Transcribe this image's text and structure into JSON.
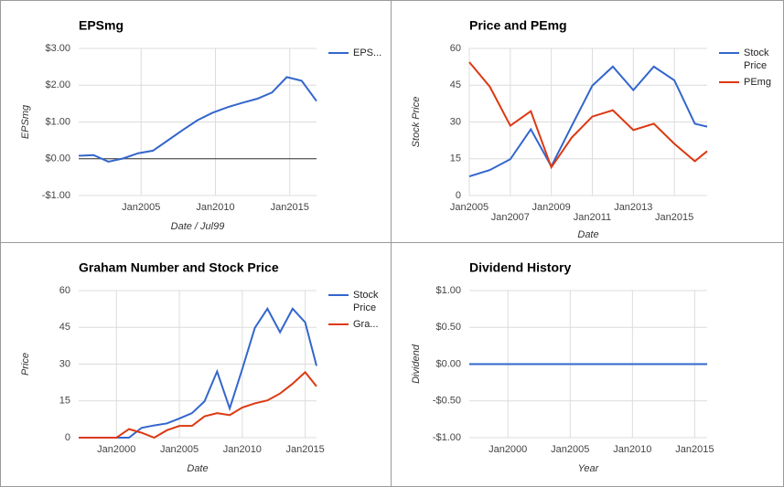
{
  "chart_data": [
    {
      "type": "line",
      "title": "EPSmg",
      "xlabel": "Date / Jul99",
      "ylabel": "EPSmg",
      "x": [
        2000.8,
        2001.8,
        2002.8,
        2003.8,
        2004.8,
        2005.8,
        2006.8,
        2007.8,
        2008.8,
        2009.8,
        2010.8,
        2011.8,
        2012.8,
        2013.8,
        2014.8,
        2015.8,
        2016.8
      ],
      "series": [
        {
          "name": "EPS...",
          "color": "#3366cc",
          "values": [
            0.08,
            0.1,
            -0.08,
            0.01,
            0.15,
            0.22,
            0.5,
            0.78,
            1.05,
            1.25,
            1.4,
            1.52,
            1.63,
            1.8,
            2.22,
            2.12,
            1.57
          ]
        }
      ],
      "xlim": [
        2000.8,
        2016.8
      ],
      "xticks": [
        {
          "value": 2005,
          "label": "Jan2005"
        },
        {
          "value": 2010,
          "label": "Jan2010"
        },
        {
          "value": 2015,
          "label": "Jan2015"
        }
      ],
      "ylim": [
        -1,
        3
      ],
      "yticks": [
        {
          "value": 3,
          "label": "$3.00"
        },
        {
          "value": 2,
          "label": "$2.00"
        },
        {
          "value": 1,
          "label": "$1.00"
        },
        {
          "value": 0,
          "label": "$0.00"
        },
        {
          "value": -1,
          "label": "-$1.00"
        }
      ],
      "grid": true,
      "legend": "right"
    },
    {
      "type": "line",
      "title": "Price and PEmg",
      "xlabel": "Date",
      "ylabel": "Stock Price",
      "x": [
        2005,
        2006,
        2007,
        2008,
        2009,
        2010,
        2011,
        2012,
        2013,
        2014,
        2015,
        2016,
        2016.6
      ],
      "series": [
        {
          "name": "Stock Price",
          "color": "#3366cc",
          "values": [
            7.8,
            10.4,
            14.8,
            27,
            11.9,
            28.5,
            44.8,
            52.6,
            43,
            52.6,
            47,
            29.3,
            28.1
          ]
        },
        {
          "name": "PEmg",
          "color": "#dc3912",
          "values": [
            54.4,
            44.4,
            28.5,
            34.4,
            11.5,
            23.7,
            32.2,
            34.8,
            26.7,
            29.3,
            21.1,
            14,
            18.1
          ]
        }
      ],
      "xlim": [
        2005,
        2016.6
      ],
      "xticks": [
        {
          "value": 2005,
          "label": "Jan2005"
        },
        {
          "value": 2007,
          "label": "Jan2007"
        },
        {
          "value": 2009,
          "label": "Jan2009"
        },
        {
          "value": 2011,
          "label": "Jan2011"
        },
        {
          "value": 2013,
          "label": "Jan2013"
        },
        {
          "value": 2015,
          "label": "Jan2015"
        }
      ],
      "ylim": [
        0,
        60
      ],
      "yticks": [
        60,
        45,
        30,
        15,
        0
      ],
      "grid": true,
      "legend": "right"
    },
    {
      "type": "line",
      "title": "Graham Number and Stock Price",
      "xlabel": "Date",
      "ylabel": "Price",
      "x": [
        1997,
        1998,
        1999,
        2000,
        2001,
        2002,
        2003,
        2004,
        2005,
        2006,
        2007,
        2008,
        2009,
        2010,
        2011,
        2012,
        2013,
        2014,
        2015,
        2015.9
      ],
      "series": [
        {
          "name": "Stock Price",
          "color": "#3366cc",
          "values": [
            0,
            0,
            0,
            0,
            0,
            4,
            5,
            5.8,
            7.8,
            10,
            14.8,
            27,
            11.9,
            28,
            44.8,
            52.6,
            43,
            52.6,
            47,
            29.3
          ]
        },
        {
          "name": "Gra...",
          "color": "#dc3912",
          "values": [
            0,
            0,
            0,
            0,
            3.5,
            2,
            0,
            3,
            4.8,
            4.8,
            8.7,
            10,
            9.2,
            12.3,
            14,
            15.2,
            18,
            22,
            26.7,
            20.9
          ]
        }
      ],
      "xlim": [
        1997,
        2015.9
      ],
      "xticks": [
        {
          "value": 2000,
          "label": "Jan2000"
        },
        {
          "value": 2005,
          "label": "Jan2005"
        },
        {
          "value": 2010,
          "label": "Jan2010"
        },
        {
          "value": 2015,
          "label": "Jan2015"
        }
      ],
      "ylim": [
        0,
        60
      ],
      "yticks": [
        60,
        45,
        30,
        15,
        0
      ],
      "grid": true,
      "legend": "right"
    },
    {
      "type": "line",
      "title": "Dividend History",
      "xlabel": "Year",
      "ylabel": "Dividend",
      "x": [
        1996.9,
        2016
      ],
      "series": [
        {
          "color": "#3366cc",
          "values": [
            0,
            0
          ]
        }
      ],
      "xlim": [
        1996.9,
        2016
      ],
      "xticks": [
        {
          "value": 2000,
          "label": "Jan2000"
        },
        {
          "value": 2005,
          "label": "Jan2005"
        },
        {
          "value": 2010,
          "label": "Jan2010"
        },
        {
          "value": 2015,
          "label": "Jan2015"
        }
      ],
      "ylim": [
        -1,
        1
      ],
      "yticks": [
        {
          "value": 1,
          "label": "$1.00"
        },
        {
          "value": 0.5,
          "label": "$0.50"
        },
        {
          "value": 0,
          "label": "$0.00"
        },
        {
          "value": -0.5,
          "label": "-$0.50"
        },
        {
          "value": -1,
          "label": "-$1.00"
        }
      ],
      "grid": true
    }
  ]
}
